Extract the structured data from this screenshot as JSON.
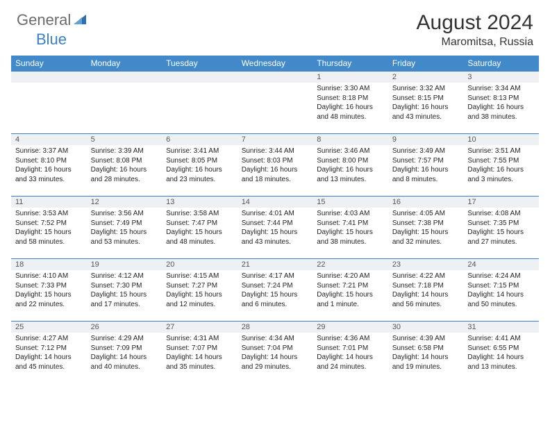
{
  "logo": {
    "general": "General",
    "blue": "Blue"
  },
  "title": "August 2024",
  "location": "Maromitsa, Russia",
  "colors": {
    "header_bg": "#4189c9",
    "header_fg": "#ffffff",
    "rule": "#3b7fc4",
    "daynum_bg": "#eef1f4",
    "logo_gray": "#6b6b6b",
    "logo_blue": "#3b7fc4"
  },
  "day_headers": [
    "Sunday",
    "Monday",
    "Tuesday",
    "Wednesday",
    "Thursday",
    "Friday",
    "Saturday"
  ],
  "weeks": [
    [
      null,
      null,
      null,
      null,
      {
        "n": "1",
        "sunrise": "3:30 AM",
        "sunset": "8:18 PM",
        "daylight": "16 hours and 48 minutes."
      },
      {
        "n": "2",
        "sunrise": "3:32 AM",
        "sunset": "8:15 PM",
        "daylight": "16 hours and 43 minutes."
      },
      {
        "n": "3",
        "sunrise": "3:34 AM",
        "sunset": "8:13 PM",
        "daylight": "16 hours and 38 minutes."
      }
    ],
    [
      {
        "n": "4",
        "sunrise": "3:37 AM",
        "sunset": "8:10 PM",
        "daylight": "16 hours and 33 minutes."
      },
      {
        "n": "5",
        "sunrise": "3:39 AM",
        "sunset": "8:08 PM",
        "daylight": "16 hours and 28 minutes."
      },
      {
        "n": "6",
        "sunrise": "3:41 AM",
        "sunset": "8:05 PM",
        "daylight": "16 hours and 23 minutes."
      },
      {
        "n": "7",
        "sunrise": "3:44 AM",
        "sunset": "8:03 PM",
        "daylight": "16 hours and 18 minutes."
      },
      {
        "n": "8",
        "sunrise": "3:46 AM",
        "sunset": "8:00 PM",
        "daylight": "16 hours and 13 minutes."
      },
      {
        "n": "9",
        "sunrise": "3:49 AM",
        "sunset": "7:57 PM",
        "daylight": "16 hours and 8 minutes."
      },
      {
        "n": "10",
        "sunrise": "3:51 AM",
        "sunset": "7:55 PM",
        "daylight": "16 hours and 3 minutes."
      }
    ],
    [
      {
        "n": "11",
        "sunrise": "3:53 AM",
        "sunset": "7:52 PM",
        "daylight": "15 hours and 58 minutes."
      },
      {
        "n": "12",
        "sunrise": "3:56 AM",
        "sunset": "7:49 PM",
        "daylight": "15 hours and 53 minutes."
      },
      {
        "n": "13",
        "sunrise": "3:58 AM",
        "sunset": "7:47 PM",
        "daylight": "15 hours and 48 minutes."
      },
      {
        "n": "14",
        "sunrise": "4:01 AM",
        "sunset": "7:44 PM",
        "daylight": "15 hours and 43 minutes."
      },
      {
        "n": "15",
        "sunrise": "4:03 AM",
        "sunset": "7:41 PM",
        "daylight": "15 hours and 38 minutes."
      },
      {
        "n": "16",
        "sunrise": "4:05 AM",
        "sunset": "7:38 PM",
        "daylight": "15 hours and 32 minutes."
      },
      {
        "n": "17",
        "sunrise": "4:08 AM",
        "sunset": "7:35 PM",
        "daylight": "15 hours and 27 minutes."
      }
    ],
    [
      {
        "n": "18",
        "sunrise": "4:10 AM",
        "sunset": "7:33 PM",
        "daylight": "15 hours and 22 minutes."
      },
      {
        "n": "19",
        "sunrise": "4:12 AM",
        "sunset": "7:30 PM",
        "daylight": "15 hours and 17 minutes."
      },
      {
        "n": "20",
        "sunrise": "4:15 AM",
        "sunset": "7:27 PM",
        "daylight": "15 hours and 12 minutes."
      },
      {
        "n": "21",
        "sunrise": "4:17 AM",
        "sunset": "7:24 PM",
        "daylight": "15 hours and 6 minutes."
      },
      {
        "n": "22",
        "sunrise": "4:20 AM",
        "sunset": "7:21 PM",
        "daylight": "15 hours and 1 minute."
      },
      {
        "n": "23",
        "sunrise": "4:22 AM",
        "sunset": "7:18 PM",
        "daylight": "14 hours and 56 minutes."
      },
      {
        "n": "24",
        "sunrise": "4:24 AM",
        "sunset": "7:15 PM",
        "daylight": "14 hours and 50 minutes."
      }
    ],
    [
      {
        "n": "25",
        "sunrise": "4:27 AM",
        "sunset": "7:12 PM",
        "daylight": "14 hours and 45 minutes."
      },
      {
        "n": "26",
        "sunrise": "4:29 AM",
        "sunset": "7:09 PM",
        "daylight": "14 hours and 40 minutes."
      },
      {
        "n": "27",
        "sunrise": "4:31 AM",
        "sunset": "7:07 PM",
        "daylight": "14 hours and 35 minutes."
      },
      {
        "n": "28",
        "sunrise": "4:34 AM",
        "sunset": "7:04 PM",
        "daylight": "14 hours and 29 minutes."
      },
      {
        "n": "29",
        "sunrise": "4:36 AM",
        "sunset": "7:01 PM",
        "daylight": "14 hours and 24 minutes."
      },
      {
        "n": "30",
        "sunrise": "4:39 AM",
        "sunset": "6:58 PM",
        "daylight": "14 hours and 19 minutes."
      },
      {
        "n": "31",
        "sunrise": "4:41 AM",
        "sunset": "6:55 PM",
        "daylight": "14 hours and 13 minutes."
      }
    ]
  ],
  "labels": {
    "sunrise": "Sunrise:",
    "sunset": "Sunset:",
    "daylight": "Daylight:"
  }
}
